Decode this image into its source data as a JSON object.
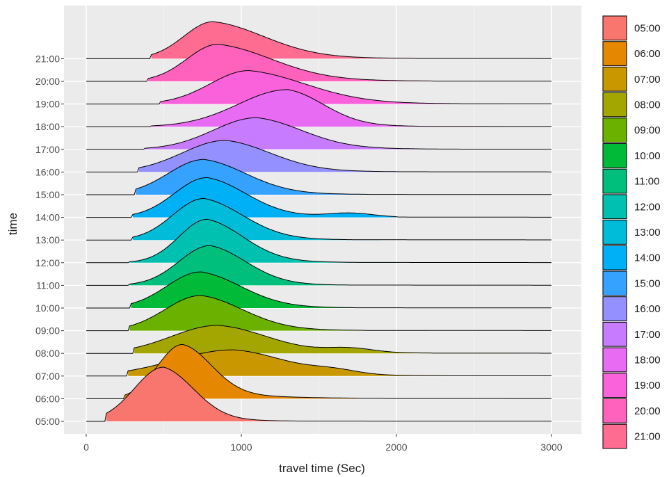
{
  "chart_data": {
    "type": "ridgeline",
    "title": "",
    "xlabel": "travel time (Sec)",
    "ylabel": "time",
    "xlim": [
      -100,
      3100
    ],
    "x_ticks": [
      0,
      1000,
      2000,
      3000
    ],
    "x_tick_labels": [
      "0",
      "1000",
      "2000",
      "3000"
    ],
    "grid": true,
    "legend_position": "right",
    "background": "#ebebeb",
    "series": [
      {
        "name": "05:00",
        "color": "#F8766D",
        "mode": 500,
        "min": 130,
        "max": 1400,
        "peak": 3.0,
        "sdL": 190,
        "sdR": 200,
        "tail": 250,
        "bump": [],
        "bumpH": 0
      },
      {
        "name": "06:00",
        "color": "#E58700",
        "mode": 620,
        "min": 250,
        "max": 1750,
        "peak": 3.0,
        "sdL": 160,
        "sdR": 190,
        "tail": 380,
        "bump": [],
        "bumpH": 0
      },
      {
        "name": "07:00",
        "color": "#C99800",
        "mode": 950,
        "min": 270,
        "max": 2700,
        "peak": 1.45,
        "sdL": 380,
        "sdR": 330,
        "tail": 500,
        "bump": [
          1600
        ],
        "bumpH": 0.15
      },
      {
        "name": "08:00",
        "color": "#A3A500",
        "mode": 850,
        "min": 310,
        "max": 2800,
        "peak": 1.55,
        "sdL": 300,
        "sdR": 320,
        "tail": 500,
        "bump": [
          1700
        ],
        "bumpH": 0.15
      },
      {
        "name": "09:00",
        "color": "#6BB100",
        "mode": 740,
        "min": 280,
        "max": 2200,
        "peak": 1.95,
        "sdL": 230,
        "sdR": 280,
        "tail": 350,
        "bump": [],
        "bumpH": 0
      },
      {
        "name": "10:00",
        "color": "#00BA38",
        "mode": 740,
        "min": 290,
        "max": 2100,
        "peak": 2.0,
        "sdL": 220,
        "sdR": 270,
        "tail": 320,
        "bump": [],
        "bumpH": 0
      },
      {
        "name": "11:00",
        "color": "#00BF7D",
        "mode": 800,
        "min": 280,
        "max": 1800,
        "peak": 2.2,
        "sdL": 200,
        "sdR": 240,
        "tail": 280,
        "bump": [],
        "bumpH": 0
      },
      {
        "name": "12:00",
        "color": "#00C0AF",
        "mode": 780,
        "min": 280,
        "max": 2000,
        "peak": 2.4,
        "sdL": 180,
        "sdR": 240,
        "tail": 300,
        "bump": [],
        "bumpH": 0
      },
      {
        "name": "13:00",
        "color": "#00BCD8",
        "mode": 760,
        "min": 300,
        "max": 1900,
        "peak": 2.3,
        "sdL": 200,
        "sdR": 260,
        "tail": 300,
        "bump": [],
        "bumpH": 0
      },
      {
        "name": "14:00",
        "color": "#00B0F6",
        "mode": 780,
        "min": 300,
        "max": 2000,
        "peak": 2.2,
        "sdL": 210,
        "sdR": 260,
        "tail": 320,
        "bump": [
          1700
        ],
        "bumpH": 0.1
      },
      {
        "name": "15:00",
        "color": "#35A2FF",
        "mode": 760,
        "min": 320,
        "max": 2200,
        "peak": 1.95,
        "sdL": 230,
        "sdR": 280,
        "tail": 350,
        "bump": [],
        "bumpH": 0
      },
      {
        "name": "16:00",
        "color": "#9590FF",
        "mode": 900,
        "min": 340,
        "max": 2400,
        "peak": 1.75,
        "sdL": 280,
        "sdR": 300,
        "tail": 380,
        "bump": [],
        "bumpH": 0
      },
      {
        "name": "17:00",
        "color": "#C77CFF",
        "mode": 1100,
        "min": 380,
        "max": 2500,
        "peak": 1.75,
        "sdL": 280,
        "sdR": 300,
        "tail": 400,
        "bump": [],
        "bumpH": 0
      },
      {
        "name": "18:00",
        "color": "#E76BF3",
        "mode": 1300,
        "min": 420,
        "max": 2700,
        "peak": 2.05,
        "sdL": 320,
        "sdR": 240,
        "tail": 300,
        "bump": [],
        "bumpH": 0
      },
      {
        "name": "19:00",
        "color": "#FA62DB",
        "mode": 1050,
        "min": 480,
        "max": 2700,
        "peak": 1.85,
        "sdL": 250,
        "sdR": 380,
        "tail": 450,
        "bump": [],
        "bumpH": 0
      },
      {
        "name": "20:00",
        "color": "#FF62BC",
        "mode": 850,
        "min": 400,
        "max": 2500,
        "peak": 2.05,
        "sdL": 200,
        "sdR": 360,
        "tail": 450,
        "bump": [],
        "bumpH": 0
      },
      {
        "name": "21:00",
        "color": "#FF6C91",
        "mode": 820,
        "min": 420,
        "max": 2400,
        "peak": 2.05,
        "sdL": 190,
        "sdR": 340,
        "tail": 420,
        "bump": [],
        "bumpH": 0
      }
    ]
  }
}
